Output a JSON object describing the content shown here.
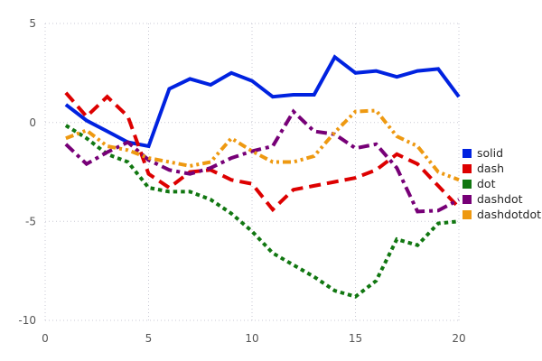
{
  "figure": {
    "background": "#ffffff",
    "grid_color": "#c9c9d4",
    "tick_label_color": "#555555"
  },
  "chart_data": {
    "type": "line",
    "title": "",
    "xlabel": "",
    "ylabel": "",
    "xlim": [
      0,
      20
    ],
    "ylim": [
      -10,
      5
    ],
    "x_ticks": [
      0,
      5,
      10,
      15,
      20
    ],
    "y_ticks": [
      5,
      0,
      -5,
      -10
    ],
    "grid": true,
    "legend_position": "right",
    "x": [
      1,
      2,
      3,
      4,
      5,
      6,
      7,
      8,
      9,
      10,
      11,
      12,
      13,
      14,
      15,
      16,
      17,
      18,
      19,
      20
    ],
    "series": [
      {
        "name": "solid",
        "style": "solid",
        "color": "#0022e0",
        "values": [
          0.9,
          0.1,
          -0.45,
          -1.0,
          -1.2,
          1.7,
          2.2,
          1.9,
          2.5,
          2.1,
          1.3,
          1.4,
          1.4,
          3.3,
          2.5,
          2.6,
          2.3,
          2.6,
          2.7,
          1.3
        ]
      },
      {
        "name": "dash",
        "style": "dash",
        "color": "#dd0000",
        "values": [
          1.5,
          0.3,
          1.3,
          0.3,
          -2.6,
          -3.3,
          -2.5,
          -2.4,
          -2.9,
          -3.1,
          -4.4,
          -3.4,
          -3.2,
          -3.0,
          -2.8,
          -2.4,
          -1.6,
          -2.1,
          -3.2,
          -4.3
        ]
      },
      {
        "name": "dot",
        "style": "dot",
        "color": "#117711",
        "values": [
          -0.15,
          -0.8,
          -1.6,
          -2.0,
          -3.3,
          -3.5,
          -3.5,
          -3.9,
          -4.6,
          -5.5,
          -6.6,
          -7.2,
          -7.8,
          -8.5,
          -8.8,
          -8.0,
          -5.9,
          -6.2,
          -5.1,
          -5.0
        ]
      },
      {
        "name": "dashdot",
        "style": "dashdot",
        "color": "#770077",
        "values": [
          -1.1,
          -2.1,
          -1.5,
          -1.0,
          -1.9,
          -2.4,
          -2.6,
          -2.3,
          -1.8,
          -1.45,
          -1.2,
          0.55,
          -0.45,
          -0.6,
          -1.3,
          -1.1,
          -2.3,
          -4.5,
          -4.45,
          -3.9
        ]
      },
      {
        "name": "dashdotdot",
        "style": "dashdotdot",
        "color": "#ee9911",
        "values": [
          -0.8,
          -0.4,
          -1.2,
          -1.4,
          -1.8,
          -2.0,
          -2.2,
          -2.0,
          -0.8,
          -1.45,
          -2.0,
          -2.0,
          -1.7,
          -0.5,
          0.55,
          0.6,
          -0.7,
          -1.2,
          -2.5,
          -2.9
        ]
      }
    ]
  }
}
